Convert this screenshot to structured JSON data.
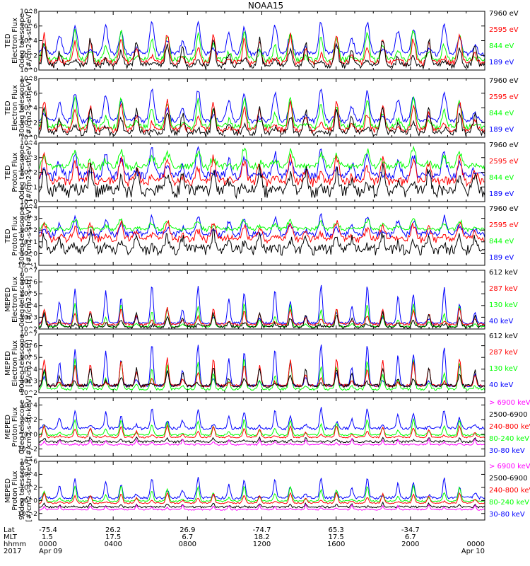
{
  "title": "NOAA15",
  "colors": {
    "black": "#000000",
    "blue": "#0000ff",
    "green": "#00ff00",
    "red": "#ff0000",
    "magenta": "#ff00ff"
  },
  "chart_data": {
    "type": "line",
    "x_ticks": [
      "0000",
      "0400",
      "0800",
      "1200",
      "1600",
      "2000",
      "0000"
    ],
    "ephemeris": {
      "row_labels": [
        "Lat",
        "MLT",
        "hhmm",
        "2017"
      ],
      "lat": [
        "-75.4",
        "26.2",
        "26.9",
        "-74.7",
        "65.3",
        "-34.7"
      ],
      "mlt": [
        "1.5",
        "17.5",
        "6.7",
        "18.2",
        "17.5",
        "6.7"
      ],
      "dates": [
        "Apr 09",
        "Apr 10"
      ]
    },
    "panels": [
      {
        "id": "ted-electron-0",
        "ylabel": [
          "TED",
          "Electron Flux",
          "0deg telescope",
          "[#/cm2-s-str-eV]"
        ],
        "yticks": [
          {
            "exp": 0,
            "label": "10^0"
          },
          {
            "exp": 2,
            "label": "10^2"
          },
          {
            "exp": 4,
            "label": "10^4"
          },
          {
            "exp": 6,
            "label": "10^6"
          },
          {
            "exp": 8,
            "label": "10^8"
          }
        ],
        "ylim_exp": [
          0,
          8
        ],
        "log": true,
        "channels": [
          {
            "name": "7960 eV",
            "color": "#000000"
          },
          {
            "name": "2595 eV",
            "color": "#ff0000"
          },
          {
            "name": "844 eV",
            "color": "#00ff00"
          },
          {
            "name": "189 eV",
            "color": "#0000ff"
          }
        ]
      },
      {
        "id": "ted-electron-30",
        "ylabel": [
          "TED",
          "Electron Flux",
          "30deg telescope",
          "[#/cm2-s-str-eV]"
        ],
        "yticks": [
          {
            "exp": 0,
            "label": "10^0"
          },
          {
            "exp": 2,
            "label": "10^2"
          },
          {
            "exp": 4,
            "label": "10^4"
          },
          {
            "exp": 6,
            "label": "10^6"
          },
          {
            "exp": 8,
            "label": "10^8"
          }
        ],
        "ylim_exp": [
          0,
          8
        ],
        "log": true,
        "channels": [
          {
            "name": "7960 eV",
            "color": "#000000"
          },
          {
            "name": "2595 eV",
            "color": "#ff0000"
          },
          {
            "name": "844 eV",
            "color": "#00ff00"
          },
          {
            "name": "189 eV",
            "color": "#0000ff"
          }
        ]
      },
      {
        "id": "ted-proton-0",
        "ylabel": [
          "TED",
          "Proton Flux",
          "0deg telescope",
          "[#/cm2-s-str-eV]"
        ],
        "yticks": [
          {
            "exp": 0,
            "label": "10^0"
          },
          {
            "exp": 1,
            "label": "10^1"
          },
          {
            "exp": 2,
            "label": "10^2"
          },
          {
            "exp": 3,
            "label": "10^3"
          },
          {
            "exp": 4,
            "label": "10^4"
          }
        ],
        "ylim_exp": [
          0,
          4
        ],
        "log": true,
        "channels": [
          {
            "name": "7960 eV",
            "color": "#000000"
          },
          {
            "name": "2595 eV",
            "color": "#ff0000"
          },
          {
            "name": "844 eV",
            "color": "#00ff00"
          },
          {
            "name": "189 eV",
            "color": "#0000ff"
          }
        ]
      },
      {
        "id": "ted-proton-30",
        "ylabel": [
          "TED",
          "Proton Flux",
          "30deg telescope",
          "[#/cm2-s-str-eV]"
        ],
        "yticks": [
          {
            "exp": -1,
            "label": "10^-1"
          },
          {
            "exp": 0,
            "label": "10^0"
          },
          {
            "exp": 1,
            "label": "10^1"
          },
          {
            "exp": 2,
            "label": "10^2"
          },
          {
            "exp": 3,
            "label": "10^3"
          },
          {
            "exp": 4,
            "label": "10^4"
          }
        ],
        "ylim_exp": [
          -1,
          4
        ],
        "log": true,
        "channels": [
          {
            "name": "7960 eV",
            "color": "#000000"
          },
          {
            "name": "2595 eV",
            "color": "#ff0000"
          },
          {
            "name": "844 eV",
            "color": "#00ff00"
          },
          {
            "name": "189 eV",
            "color": "#0000ff"
          }
        ]
      },
      {
        "id": "meped-electron-0",
        "ylabel": [
          "MEPED",
          "Electron Flux",
          "0deg telescope",
          "[#/cm2-s-str]"
        ],
        "yticks": [
          {
            "exp": 2,
            "label": "10^2"
          },
          {
            "exp": 3,
            "label": "10^3"
          },
          {
            "exp": 4,
            "label": "10^4"
          },
          {
            "exp": 5,
            "label": "10^5"
          },
          {
            "exp": 6,
            "label": "10^6"
          },
          {
            "exp": 7,
            "label": "10^7"
          }
        ],
        "ylim_exp": [
          2,
          7
        ],
        "log": true,
        "channels": [
          {
            "name": "612 keV",
            "color": "#000000"
          },
          {
            "name": "287 keV",
            "color": "#ff0000"
          },
          {
            "name": "130 keV",
            "color": "#00ff00"
          },
          {
            "name": "40 keV",
            "color": "#0000ff"
          }
        ]
      },
      {
        "id": "meped-electron-90",
        "ylabel": [
          "MEPED",
          "Electron Flux",
          "90deg telescope",
          "[#/cm2-s-str]"
        ],
        "yticks": [
          {
            "exp": 2,
            "label": "10^2"
          },
          {
            "exp": 3,
            "label": "10^3"
          },
          {
            "exp": 4,
            "label": "10^4"
          },
          {
            "exp": 5,
            "label": "10^5"
          },
          {
            "exp": 6,
            "label": "10^6"
          },
          {
            "exp": 7,
            "label": "10^7"
          }
        ],
        "ylim_exp": [
          2,
          7
        ],
        "log": true,
        "channels": [
          {
            "name": "612 keV",
            "color": "#000000"
          },
          {
            "name": "287 keV",
            "color": "#ff0000"
          },
          {
            "name": "130 keV",
            "color": "#00ff00"
          },
          {
            "name": "40 keV",
            "color": "#0000ff"
          }
        ]
      },
      {
        "id": "meped-proton-0",
        "ylabel": [
          "MEPED",
          "Proton Flux",
          "0deg telescope",
          "[#/cm2-s-str-keV]"
        ],
        "yticks": [
          {
            "exp": -2,
            "label": "10^-2"
          },
          {
            "exp": 0,
            "label": "10^0"
          },
          {
            "exp": 2,
            "label": "10^2"
          },
          {
            "exp": 4,
            "label": "10^4"
          }
        ],
        "ylim_exp": [
          -3,
          5
        ],
        "log": true,
        "channels": [
          {
            "name": "> 6900 keV",
            "color": "#ff00ff"
          },
          {
            "name": "2500-6900",
            "color": "#000000"
          },
          {
            "name": "240-800 keV",
            "color": "#ff0000"
          },
          {
            "name": "80-240 keV",
            "color": "#00ff00"
          },
          {
            "name": "30-80 keV",
            "color": "#0000ff"
          }
        ]
      },
      {
        "id": "meped-proton-90",
        "ylabel": [
          "MEPED",
          "Proton Flux",
          "90deg telescope",
          "[#/cm2-s-str-keV]"
        ],
        "yticks": [
          {
            "exp": -2,
            "label": "10^-2"
          },
          {
            "exp": 0,
            "label": "10^0"
          },
          {
            "exp": 2,
            "label": "10^2"
          },
          {
            "exp": 4,
            "label": "10^4"
          },
          {
            "exp": 6,
            "label": "10^6"
          }
        ],
        "ylim_exp": [
          -3,
          6
        ],
        "log": true,
        "channels": [
          {
            "name": "> 6900 keV",
            "color": "#ff00ff"
          },
          {
            "name": "2500-6900",
            "color": "#000000"
          },
          {
            "name": "240-800 keV",
            "color": "#ff0000"
          },
          {
            "name": "80-240 keV",
            "color": "#00ff00"
          },
          {
            "name": "30-80 keV",
            "color": "#0000ff"
          }
        ]
      }
    ]
  }
}
